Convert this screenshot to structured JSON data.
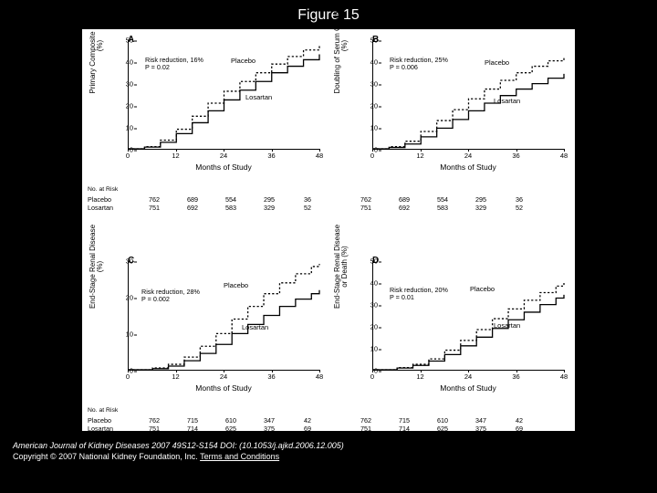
{
  "title": "Figure 15",
  "foot_citation": "American Journal of Kidney Diseases 2007 49S12-S154 DOI: (10.1053/j.ajkd.2006.12.005)",
  "foot_copyright": "Copyright © 2007 National Kidney Foundation, Inc. ",
  "foot_link": "Terms and Conditions",
  "xlabel": "Months of Study",
  "risk_header": "No. at Risk",
  "risk_rows_1": {
    "labels": [
      "Placebo",
      "Losartan"
    ],
    "left": [
      [
        "762",
        "689",
        "554",
        "295",
        "36"
      ],
      [
        "751",
        "692",
        "583",
        "329",
        "52"
      ]
    ],
    "right": [
      [
        "762",
        "689",
        "554",
        "295",
        "36"
      ],
      [
        "751",
        "692",
        "583",
        "329",
        "52"
      ]
    ]
  },
  "risk_rows_2": {
    "labels": [
      "Placebo",
      "Losartan"
    ],
    "left": [
      [
        "762",
        "715",
        "610",
        "347",
        "42"
      ],
      [
        "751",
        "714",
        "625",
        "375",
        "69"
      ]
    ],
    "right": [
      [
        "762",
        "715",
        "610",
        "347",
        "42"
      ],
      [
        "751",
        "714",
        "625",
        "375",
        "69"
      ]
    ]
  },
  "panels": {
    "A": {
      "letter": "A",
      "ylabel": "Primary Composite End Point\n(%)",
      "ymax": 50,
      "ystep": 10,
      "xmax": 48,
      "xstep": 12,
      "anno": "Risk reduction, 16%\nP = 0.02",
      "anno_pos": [
        62,
        18
      ],
      "label_placebo_pos": [
        156,
        18
      ],
      "label_losartan_pos": [
        172,
        58
      ],
      "placebo": [
        [
          0,
          0
        ],
        [
          4,
          1
        ],
        [
          8,
          4
        ],
        [
          12,
          9
        ],
        [
          16,
          15
        ],
        [
          20,
          21
        ],
        [
          24,
          26.5
        ],
        [
          28,
          31
        ],
        [
          32,
          35
        ],
        [
          36,
          39
        ],
        [
          40,
          42.5
        ],
        [
          44,
          45.5
        ],
        [
          48,
          47.5
        ]
      ],
      "losartan": [
        [
          0,
          0
        ],
        [
          4,
          0.8
        ],
        [
          8,
          3
        ],
        [
          12,
          7
        ],
        [
          16,
          12
        ],
        [
          20,
          17.5
        ],
        [
          24,
          22.5
        ],
        [
          28,
          27
        ],
        [
          32,
          31
        ],
        [
          36,
          35
        ],
        [
          40,
          38
        ],
        [
          44,
          41
        ],
        [
          48,
          43.5
        ]
      ]
    },
    "B": {
      "letter": "B",
      "ylabel": "Doubling of Serum Creatinine\n(%)",
      "ymax": 50,
      "ystep": 10,
      "xmax": 48,
      "xstep": 12,
      "anno": "Risk reduction, 25%\nP = 0.006",
      "anno_pos": [
        62,
        18
      ],
      "label_placebo_pos": [
        166,
        20
      ],
      "label_losartan_pos": [
        176,
        62
      ],
      "placebo": [
        [
          0,
          0
        ],
        [
          4,
          1
        ],
        [
          8,
          3.5
        ],
        [
          12,
          8
        ],
        [
          16,
          13
        ],
        [
          20,
          18
        ],
        [
          24,
          23
        ],
        [
          28,
          27.5
        ],
        [
          32,
          31.5
        ],
        [
          36,
          35
        ],
        [
          40,
          38
        ],
        [
          44,
          40.5
        ],
        [
          48,
          42.5
        ]
      ],
      "losartan": [
        [
          0,
          0
        ],
        [
          4,
          0.6
        ],
        [
          8,
          2.2
        ],
        [
          12,
          5.5
        ],
        [
          16,
          9.5
        ],
        [
          20,
          13.5
        ],
        [
          24,
          17.5
        ],
        [
          28,
          21
        ],
        [
          32,
          24.5
        ],
        [
          36,
          27.5
        ],
        [
          40,
          30
        ],
        [
          44,
          32.5
        ],
        [
          48,
          34.5
        ]
      ]
    },
    "C": {
      "letter": "C",
      "ylabel": "End-Stage Renal Disease\n(%)",
      "ymax": 30,
      "ystep": 10,
      "xmax": 48,
      "xstep": 12,
      "anno": "Risk reduction, 28%\nP = 0.002",
      "anno_pos": [
        58,
        30
      ],
      "label_placebo_pos": [
        148,
        22
      ],
      "label_losartan_pos": [
        168,
        68
      ],
      "placebo": [
        [
          0,
          0
        ],
        [
          6,
          0.5
        ],
        [
          10,
          1.5
        ],
        [
          14,
          3.5
        ],
        [
          18,
          6.5
        ],
        [
          22,
          10
        ],
        [
          26,
          14
        ],
        [
          30,
          17.5
        ],
        [
          34,
          21
        ],
        [
          38,
          24
        ],
        [
          42,
          26.5
        ],
        [
          46,
          28.5
        ],
        [
          48,
          29.2
        ]
      ],
      "losartan": [
        [
          0,
          0
        ],
        [
          6,
          0.3
        ],
        [
          10,
          1
        ],
        [
          14,
          2.5
        ],
        [
          18,
          4.5
        ],
        [
          22,
          7
        ],
        [
          26,
          10
        ],
        [
          30,
          12.5
        ],
        [
          34,
          15
        ],
        [
          38,
          17.5
        ],
        [
          42,
          19.5
        ],
        [
          46,
          21
        ],
        [
          48,
          22
        ]
      ]
    },
    "D": {
      "letter": "D",
      "ylabel": "End-Stage Renal Disease\nor Death (%)",
      "ymax": 50,
      "ystep": 10,
      "xmax": 48,
      "xstep": 12,
      "anno": "Risk reduction, 20%\nP = 0.01",
      "anno_pos": [
        62,
        28
      ],
      "label_placebo_pos": [
        150,
        26
      ],
      "label_losartan_pos": [
        176,
        66
      ],
      "placebo": [
        [
          0,
          0
        ],
        [
          6,
          1
        ],
        [
          10,
          2.5
        ],
        [
          14,
          5
        ],
        [
          18,
          9
        ],
        [
          22,
          13.5
        ],
        [
          26,
          18.5
        ],
        [
          30,
          23.5
        ],
        [
          34,
          28
        ],
        [
          38,
          32
        ],
        [
          42,
          35.5
        ],
        [
          46,
          38.5
        ],
        [
          48,
          40
        ]
      ],
      "losartan": [
        [
          0,
          0
        ],
        [
          6,
          0.8
        ],
        [
          10,
          2
        ],
        [
          14,
          4
        ],
        [
          18,
          7
        ],
        [
          22,
          11
        ],
        [
          26,
          15
        ],
        [
          30,
          19
        ],
        [
          34,
          23
        ],
        [
          38,
          26.5
        ],
        [
          42,
          30
        ],
        [
          46,
          33
        ],
        [
          48,
          34.5
        ]
      ]
    }
  },
  "curve_labels": {
    "placebo": "Placebo",
    "losartan": "Losartan"
  },
  "style": {
    "bg": "#000000",
    "panel_bg": "#ffffff",
    "line_color": "#000000",
    "placebo_dash": "2.2,2.2",
    "losartan_dash": "none",
    "line_width": 1.3
  }
}
